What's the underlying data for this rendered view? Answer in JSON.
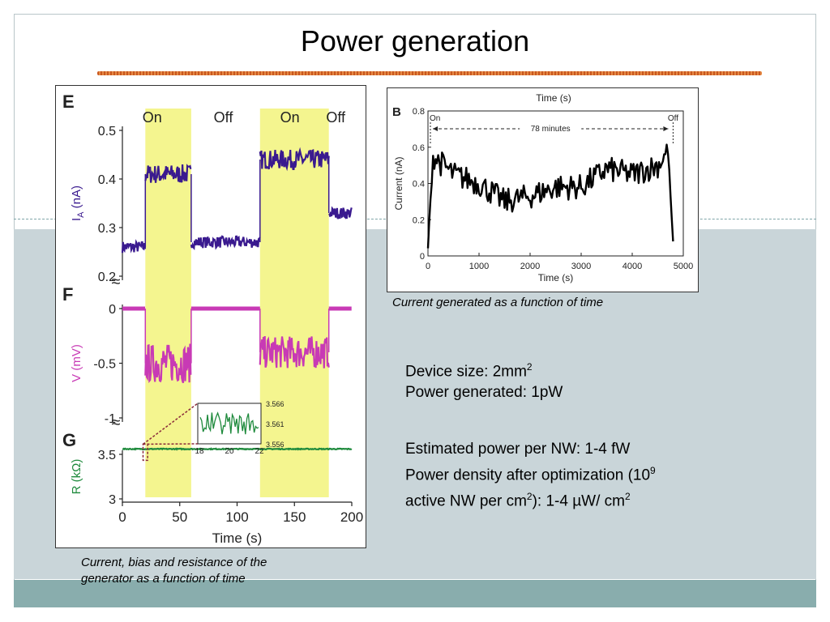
{
  "slide": {
    "title": "Power generation",
    "caption_left": [
      "Current, bias and resistance of the",
      "generator as a function of time"
    ],
    "caption_right": "Current generated as a function of time",
    "text_block_1": [
      {
        "pre": "Device size: 2mm",
        "sup": "2",
        "post": ""
      },
      {
        "pre": "Power generated: 1pW",
        "sup": "",
        "post": ""
      }
    ],
    "text_block_2": [
      {
        "pre": "Estimated power per NW: 1-4 fW",
        "sup": "",
        "post": ""
      },
      {
        "pre": "Power density after optimization (10",
        "sup": "9",
        "post": ""
      },
      {
        "pre": "active NW per cm",
        "sup": "2",
        "post": "): 1-4 µW/ cm",
        "sup2": "2"
      }
    ]
  },
  "chart_data": [
    {
      "type": "line",
      "panel_labels": [
        "E",
        "F",
        "G"
      ],
      "state_labels": [
        "On",
        "Off",
        "On",
        "Off"
      ],
      "on_intervals": [
        [
          20,
          60
        ],
        [
          120,
          180
        ]
      ],
      "xlabel": "Time (s)",
      "x_ticks": [
        "0",
        "50",
        "100",
        "150",
        "200"
      ],
      "xlim": [
        0,
        200
      ],
      "highlight_color": "#f4f58f",
      "subplots": [
        {
          "panel": "E",
          "ylabel": "I_A (nA)",
          "ylabel_main": "I",
          "ylabel_sub": "A",
          "ylabel_rest": " (nA)",
          "y_ticks": [
            "0.5",
            "0.4",
            "0.3",
            "0.2"
          ],
          "ylim": [
            0.2,
            0.5
          ],
          "color": "#3a1a8f",
          "segments": [
            {
              "t": [
                0,
                20
              ],
              "level": 0.26,
              "noise": 0.012
            },
            {
              "t": [
                20,
                60
              ],
              "level": 0.41,
              "noise": 0.02
            },
            {
              "t": [
                60,
                120
              ],
              "level": 0.27,
              "noise": 0.012
            },
            {
              "t": [
                120,
                180
              ],
              "level": 0.44,
              "noise": 0.02
            },
            {
              "t": [
                180,
                200
              ],
              "level": 0.33,
              "noise": 0.012
            }
          ]
        },
        {
          "panel": "F",
          "ylabel": "V (mV)",
          "y_ticks": [
            "0",
            "-0.5",
            "-1"
          ],
          "ylim": [
            -1,
            0
          ],
          "color": "#c83ab5",
          "segments": [
            {
              "t": [
                0,
                20
              ],
              "level": 0,
              "noise": 0
            },
            {
              "t": [
                20,
                60
              ],
              "level": -0.5,
              "noise": 0.18
            },
            {
              "t": [
                60,
                120
              ],
              "level": 0,
              "noise": 0
            },
            {
              "t": [
                120,
                180
              ],
              "level": -0.4,
              "noise": 0.15
            },
            {
              "t": [
                180,
                200
              ],
              "level": 0,
              "noise": 0
            }
          ]
        },
        {
          "panel": "G",
          "ylabel": "R (kΩ)",
          "y_ticks": [
            "3.5",
            "3"
          ],
          "ylim": [
            3,
            3.5
          ],
          "color": "#1e8a3c",
          "segments": [
            {
              "t": [
                0,
                200
              ],
              "level": 3.56,
              "noise": 0.005
            }
          ],
          "inset": {
            "x_ticks": [
              "18",
              "20",
              "22"
            ],
            "y_ticks": [
              "3.566",
              "3.561",
              "3.556"
            ],
            "xlim": [
              18,
              22
            ],
            "ylim": [
              3.556,
              3.566
            ]
          }
        }
      ]
    },
    {
      "type": "line",
      "panel_label": "B",
      "title": "Time (s)",
      "xlabel": "Time (s)",
      "ylabel": "Current (nA)",
      "x_ticks": [
        "0",
        "1000",
        "2000",
        "3000",
        "4000",
        "5000"
      ],
      "y_ticks": [
        "0.8",
        "0.6",
        "0.4",
        "0.2",
        "0"
      ],
      "xlim": [
        0,
        5000
      ],
      "ylim": [
        0,
        0.8
      ],
      "annotation_on": "On",
      "annotation_off": "Off",
      "annotation_span": "78 minutes",
      "color": "#000000",
      "trend": [
        {
          "x": 0,
          "y": 0.05
        },
        {
          "x": 100,
          "y": 0.55
        },
        {
          "x": 500,
          "y": 0.45
        },
        {
          "x": 1000,
          "y": 0.4
        },
        {
          "x": 1500,
          "y": 0.3
        },
        {
          "x": 2000,
          "y": 0.33
        },
        {
          "x": 2500,
          "y": 0.38
        },
        {
          "x": 3000,
          "y": 0.38
        },
        {
          "x": 3500,
          "y": 0.48
        },
        {
          "x": 4000,
          "y": 0.45
        },
        {
          "x": 4500,
          "y": 0.5
        },
        {
          "x": 4700,
          "y": 0.58
        },
        {
          "x": 4800,
          "y": 0.08
        }
      ]
    }
  ]
}
